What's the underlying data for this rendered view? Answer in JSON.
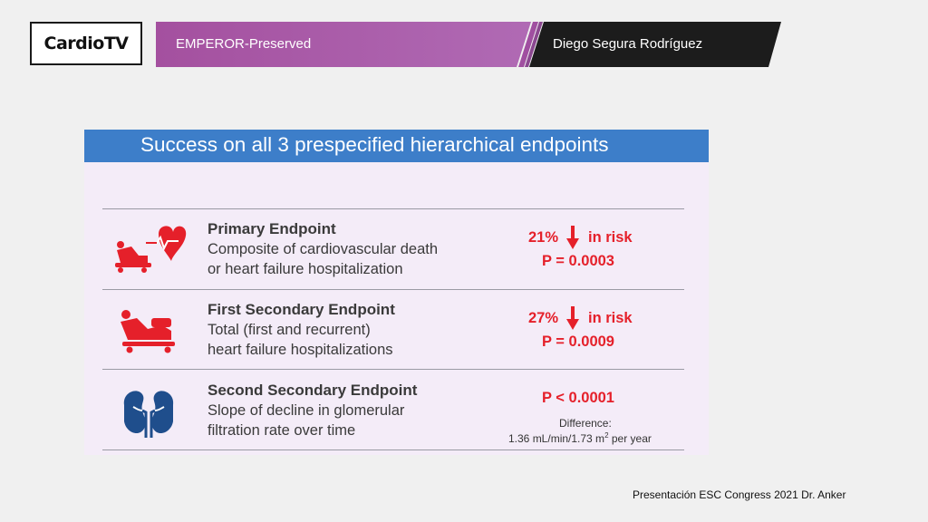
{
  "header": {
    "logo_text": "CardioTV",
    "title": "EMPEROR-Preserved",
    "author": "Diego Segura Rodríguez"
  },
  "slide": {
    "title": "Success on all 3 prespecified hierarchical endpoints",
    "endpoints": [
      {
        "name": "Primary Endpoint",
        "desc_line1": "Composite of cardiovascular death",
        "desc_line2": "or heart failure hospitalization",
        "risk_pct": "21%",
        "risk_text": "in risk",
        "p_value": "P = 0.0003",
        "icon": "patient-bed-heart-icon"
      },
      {
        "name": "First Secondary Endpoint",
        "desc_line1": "Total (first and recurrent)",
        "desc_line2": "heart failure hospitalizations",
        "risk_pct": "27%",
        "risk_text": "in risk",
        "p_value": "P = 0.0009",
        "icon": "patient-bed-icon"
      },
      {
        "name": "Second Secondary Endpoint",
        "desc_line1": "Slope of decline in glomerular",
        "desc_line2": "filtration rate over time",
        "p_value": "P < 0.0001",
        "difference_label": "Difference:",
        "difference_value": "1.36 mL/min/1.73 m",
        "difference_sup": "2",
        "difference_unit": " per year",
        "icon": "kidneys-icon"
      }
    ]
  },
  "footer": {
    "credit": "Presentación ESC Congress 2021  Dr. Anker"
  },
  "colors": {
    "accent_red": "#e5202a",
    "header_blue": "#3d7ec9",
    "bar_purple": "#a656a8",
    "bar_dark": "#1c1c1c"
  }
}
